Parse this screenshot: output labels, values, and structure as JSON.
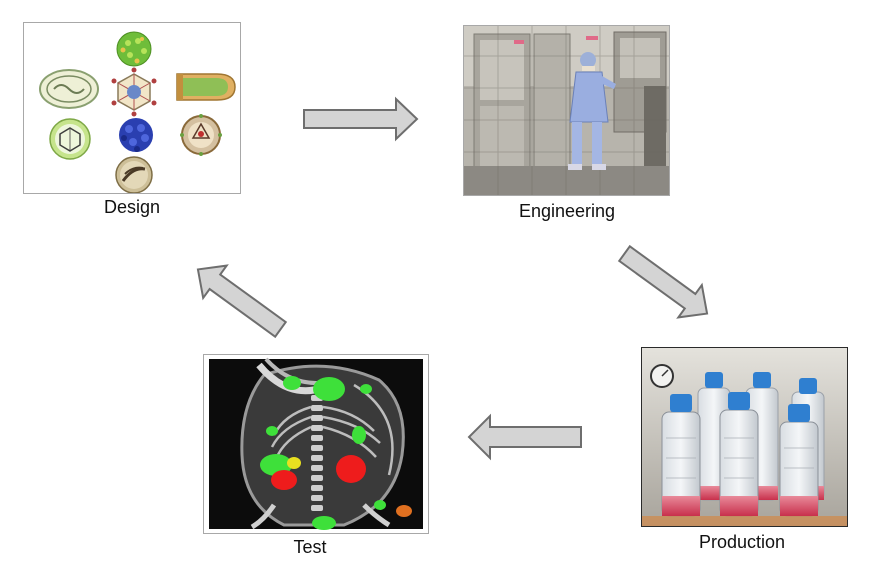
{
  "diagram": {
    "type": "cycle",
    "steps": [
      {
        "id": "design",
        "label": "Design"
      },
      {
        "id": "engineering",
        "label": "Engineering"
      },
      {
        "id": "production",
        "label": "Production"
      },
      {
        "id": "test",
        "label": "Test"
      }
    ],
    "flow": [
      "design",
      "engineering",
      "production",
      "test",
      "design"
    ],
    "colors": {
      "arrow_fill": "#d4d4d4",
      "arrow_stroke": "#6e6e6e",
      "panel_border": "#a8a8a8",
      "fluoro_green": "#3ee03a",
      "fluoro_red": "#ee1c1c",
      "bottle_cap": "#2f7fd0",
      "medium_pink": "#d8506c"
    }
  },
  "icons": {
    "design": [
      "virus-oval-icon",
      "virus-sphere-green-icon",
      "virus-bullet-icon",
      "virus-icosahedron-icon",
      "virus-blue-icon",
      "virus-enveloped-icon",
      "virus-rod-icon"
    ],
    "engineering": "lab-worker-icon",
    "production": "culture-bottle-icon",
    "test": "mouse-scan-icon"
  }
}
